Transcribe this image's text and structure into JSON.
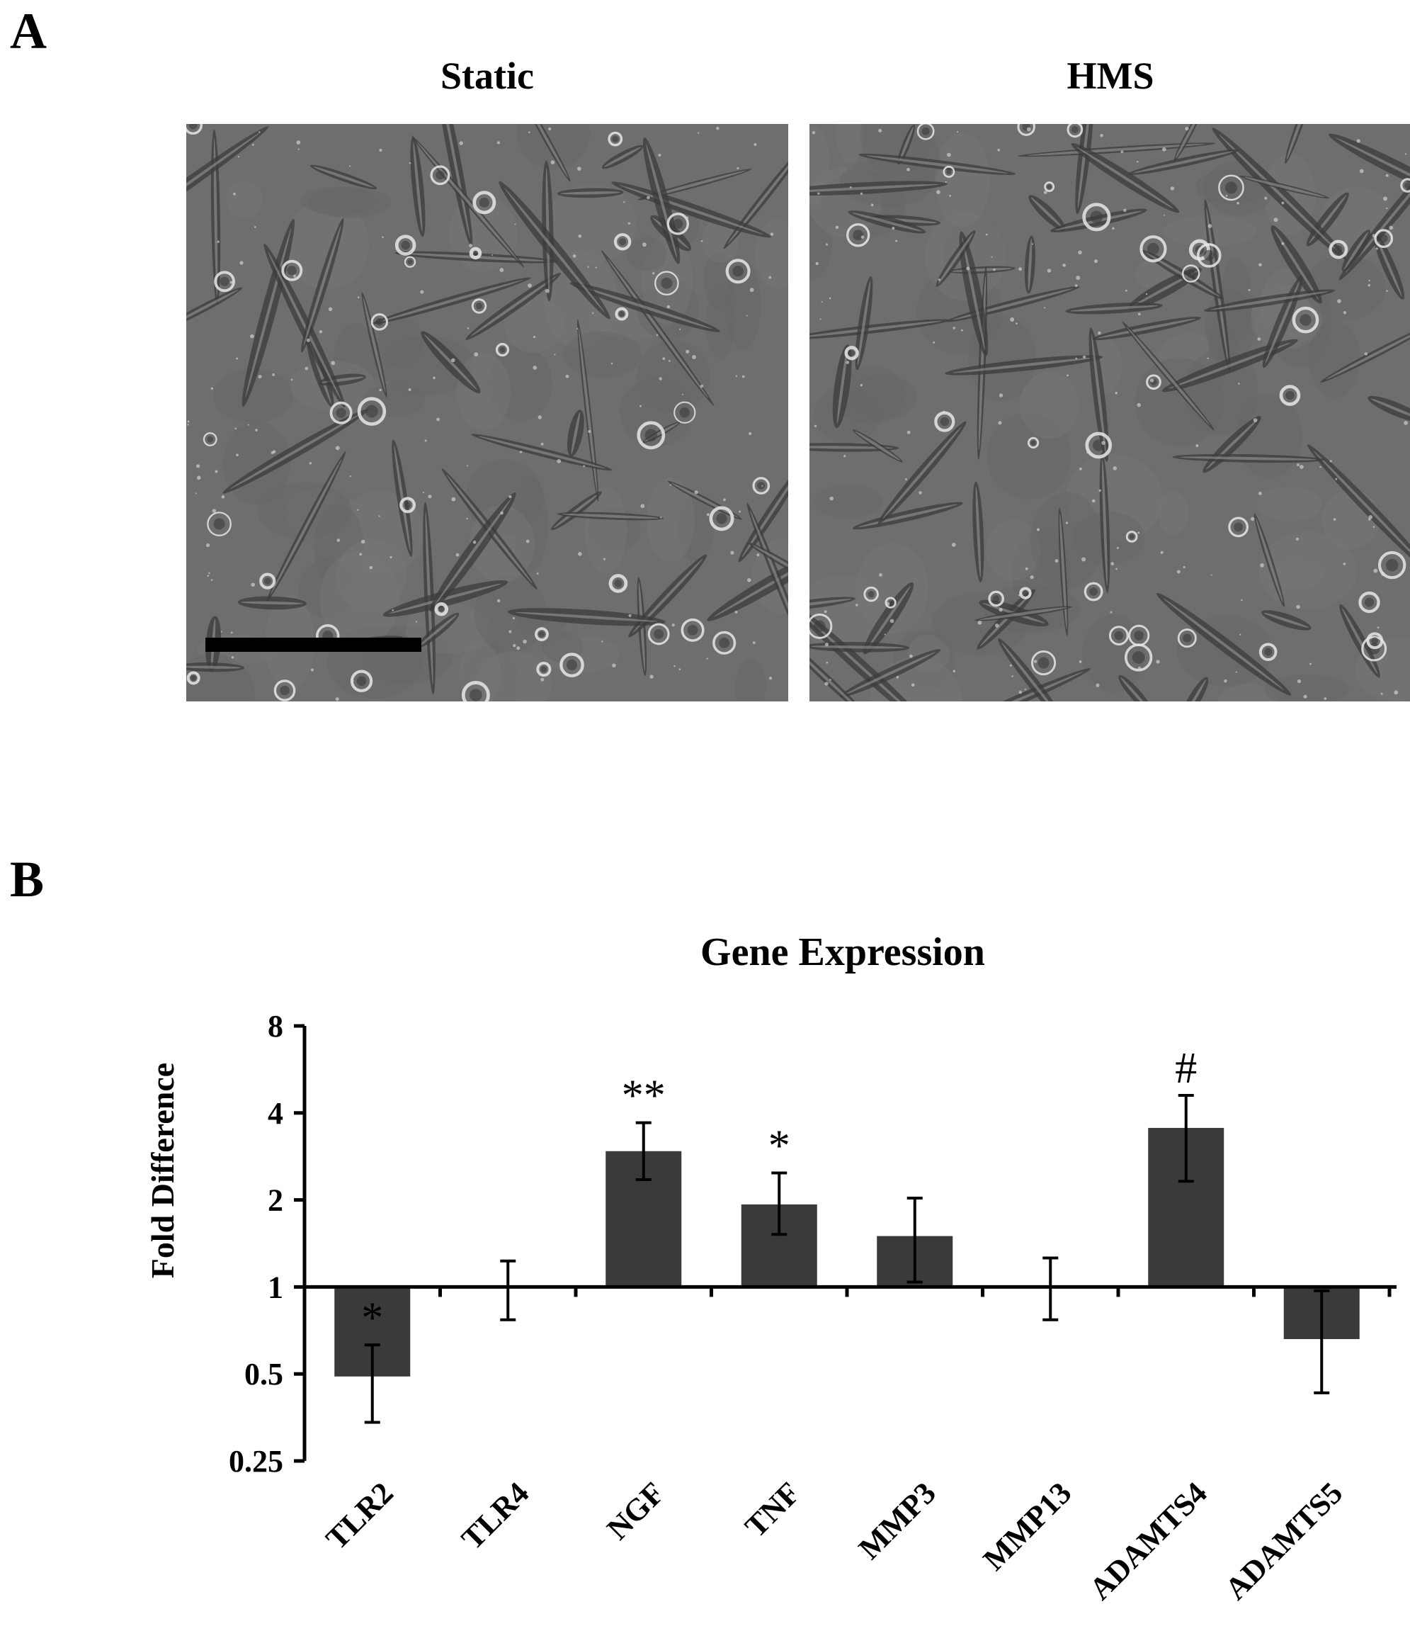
{
  "panel_a": {
    "letter": "A",
    "images": [
      {
        "title": "Static"
      },
      {
        "title": "HMS"
      }
    ]
  },
  "panel_b": {
    "letter": "B"
  },
  "colors": {
    "bar": "#3a3a3a",
    "axis": "#000000",
    "micro_bg": "#6e6e6e",
    "cell_bright": "#e8e8e8",
    "cell_dark": "#3c3c3c"
  },
  "chart_data": {
    "type": "bar",
    "title": "Gene Expression",
    "ylabel": "Fold Difference",
    "xlabel": "",
    "y_scale": "log2",
    "ylim": [
      0.25,
      8
    ],
    "y_ticks": [
      0.25,
      0.5,
      1,
      2,
      4,
      8
    ],
    "y_tick_labels": [
      "0.25",
      "0.5",
      "1",
      "2",
      "4",
      "8"
    ],
    "baseline": 1,
    "categories": [
      "TLR2",
      "TLR4",
      "NGF",
      "TNF",
      "MMP3",
      "MMP13",
      "ADAMTS4",
      "ADAMTS5"
    ],
    "values": [
      0.49,
      1.0,
      2.95,
      1.93,
      1.5,
      1.0,
      3.55,
      0.66
    ],
    "error_low": [
      0.34,
      0.77,
      2.35,
      1.52,
      1.04,
      0.77,
      2.32,
      0.43
    ],
    "error_high": [
      0.63,
      1.23,
      3.7,
      2.48,
      2.03,
      1.26,
      4.6,
      0.97
    ],
    "annotations": [
      "*",
      "",
      "**",
      "*",
      "",
      "",
      "#",
      ""
    ],
    "grid": false,
    "legend": "none"
  }
}
